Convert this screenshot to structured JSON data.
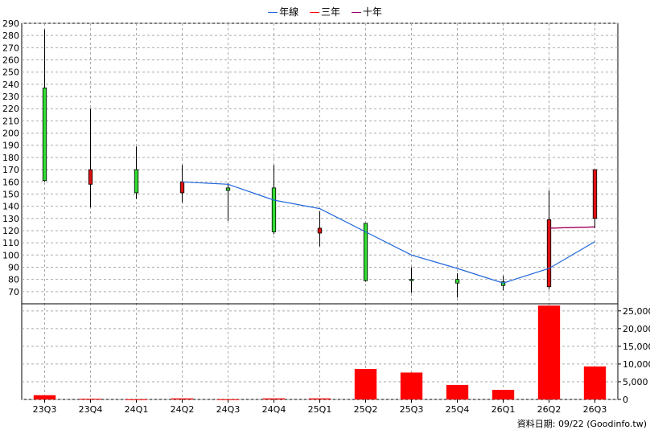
{
  "legend": [
    {
      "label": "年線",
      "color": "#1f66d9"
    },
    {
      "label": "三年",
      "color": "#ff0000"
    },
    {
      "label": "十年",
      "color": "#990066"
    }
  ],
  "footer": "資料日期: 09/22 (Goodinfo.tw)",
  "colors": {
    "up": "#33dd33",
    "down": "#dd1111",
    "volume": "#ff0000",
    "grid": "#aaaaaa"
  },
  "chart_data": [
    {
      "type": "candlestick",
      "categories": [
        "23Q3",
        "23Q4",
        "24Q1",
        "24Q2",
        "24Q3",
        "24Q4",
        "25Q1",
        "25Q2",
        "25Q3",
        "25Q4",
        "26Q1",
        "26Q2",
        "26Q3"
      ],
      "ylim": [
        60,
        290
      ],
      "yticks": [
        70,
        80,
        90,
        100,
        110,
        120,
        130,
        140,
        150,
        160,
        170,
        180,
        190,
        200,
        210,
        220,
        230,
        240,
        250,
        260,
        270,
        280,
        290
      ],
      "candles": [
        {
          "open": 161,
          "close": 237,
          "high": 285,
          "low": 160
        },
        {
          "open": 170,
          "close": 158,
          "high": 220,
          "low": 139
        },
        {
          "open": 151,
          "close": 170,
          "high": 189,
          "low": 146
        },
        {
          "open": 160,
          "close": 151,
          "high": 174,
          "low": 143
        },
        {
          "open": 153,
          "close": 155,
          "high": 159,
          "low": 128
        },
        {
          "open": 119,
          "close": 155,
          "high": 174,
          "low": 117
        },
        {
          "open": 122,
          "close": 118,
          "high": 136,
          "low": 107
        },
        {
          "open": 79,
          "close": 126,
          "high": 126,
          "low": 78
        },
        {
          "open": 80,
          "close": 80,
          "high": 90,
          "low": 69
        },
        {
          "open": 77,
          "close": 80,
          "high": 85,
          "low": 65
        },
        {
          "open": 75,
          "close": 78,
          "high": 83,
          "low": 71
        },
        {
          "open": 129,
          "close": 74,
          "high": 153,
          "low": 72
        },
        {
          "open": 170,
          "close": 130,
          "high": 170,
          "low": 122
        }
      ],
      "series": [
        {
          "name": "年線",
          "values": [
            null,
            null,
            null,
            160,
            158,
            145,
            138,
            119,
            100,
            89,
            77,
            89,
            111
          ]
        },
        {
          "name": "三年",
          "values": [
            null,
            null,
            null,
            null,
            null,
            null,
            null,
            null,
            null,
            null,
            null,
            122,
            123
          ]
        },
        {
          "name": "十年",
          "values": [
            null,
            null,
            null,
            null,
            null,
            null,
            null,
            null,
            null,
            null,
            null,
            122,
            123
          ]
        }
      ]
    },
    {
      "type": "bar",
      "categories": [
        "23Q3",
        "23Q4",
        "24Q1",
        "24Q2",
        "24Q3",
        "24Q4",
        "25Q1",
        "25Q2",
        "25Q3",
        "25Q4",
        "26Q1",
        "26Q2",
        "26Q3"
      ],
      "values": [
        1200,
        200,
        50,
        300,
        50,
        300,
        300,
        8600,
        7600,
        4100,
        2700,
        26500,
        9300
      ],
      "ylim": [
        0,
        27000
      ],
      "yticks": [
        0,
        5000,
        10000,
        15000,
        20000,
        25000
      ],
      "ytick_labels": [
        "0",
        "5,000",
        "10,000",
        "15,000",
        "20,000",
        "25,000"
      ]
    }
  ]
}
